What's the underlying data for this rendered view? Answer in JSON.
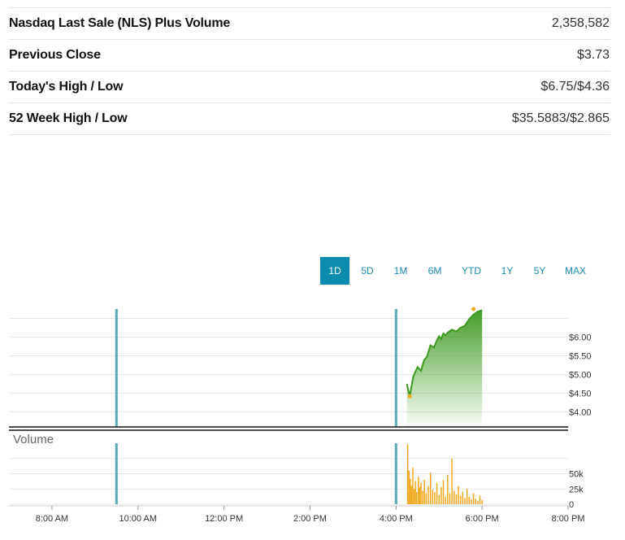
{
  "stats": [
    {
      "label": "Nasdaq Last Sale (NLS) Plus Volume",
      "value": "2,358,582"
    },
    {
      "label": "Previous Close",
      "value": "$3.73"
    },
    {
      "label": "Today's High / Low",
      "value": "$6.75/$4.36"
    },
    {
      "label": "52 Week High / Low",
      "value": "$35.5883/$2.865"
    }
  ],
  "tabs": [
    {
      "label": "1D",
      "active": true
    },
    {
      "label": "5D",
      "active": false
    },
    {
      "label": "1M",
      "active": false
    },
    {
      "label": "6M",
      "active": false
    },
    {
      "label": "YTD",
      "active": false
    },
    {
      "label": "1Y",
      "active": false
    },
    {
      "label": "5Y",
      "active": false
    },
    {
      "label": "MAX",
      "active": false
    }
  ],
  "colors": {
    "accent": "#0e8cb0",
    "price_line": "#3a9a1c",
    "volume_bar": "#f0a81a",
    "session_marker": "#5aa8b8"
  },
  "chart_data": [
    {
      "type": "line",
      "title": "",
      "x_labels": [
        "8:00 AM",
        "10:00 AM",
        "12:00 PM",
        "2:00 PM",
        "4:00 PM",
        "6:00 PM",
        "8:00 PM"
      ],
      "x_range_hours": [
        7,
        20
      ],
      "session_markers_hours": [
        9.5,
        16
      ],
      "y_ticks": [
        "$6.00",
        "$5.50",
        "$5.00",
        "$4.50",
        "$4.00"
      ],
      "y_tick_values": [
        6.0,
        5.5,
        5.0,
        4.5,
        4.0
      ],
      "ylim": [
        3.6,
        6.75
      ],
      "series": [
        {
          "name": "Price",
          "x": [
            16.25,
            16.32,
            16.4,
            16.5,
            16.58,
            16.65,
            16.72,
            16.8,
            16.88,
            16.95,
            17.0,
            17.05,
            17.1,
            17.15,
            17.2,
            17.3,
            17.4,
            17.5,
            17.6,
            17.7,
            17.8,
            17.9,
            18.0
          ],
          "y": [
            4.75,
            4.42,
            4.95,
            5.2,
            5.1,
            5.38,
            5.48,
            5.78,
            5.72,
            5.92,
            6.02,
            5.95,
            6.1,
            6.05,
            6.12,
            6.2,
            6.15,
            6.25,
            6.3,
            6.48,
            6.6,
            6.68,
            6.72
          ]
        }
      ],
      "markers": [
        {
          "label": "low",
          "x": 16.32,
          "y": 4.42
        },
        {
          "label": "high",
          "x": 17.8,
          "y": 6.75
        }
      ]
    },
    {
      "type": "bar",
      "title": "Volume",
      "y_ticks": [
        "50k",
        "25k",
        "0"
      ],
      "y_tick_values": [
        50000,
        25000,
        0
      ],
      "ylim": [
        0,
        100000
      ],
      "x_range_hours": [
        7,
        20
      ],
      "session_markers_hours": [
        9.5,
        16
      ],
      "x": [
        16.27,
        16.3,
        16.33,
        16.36,
        16.39,
        16.42,
        16.45,
        16.48,
        16.52,
        16.55,
        16.58,
        16.62,
        16.66,
        16.7,
        16.75,
        16.8,
        16.85,
        16.9,
        16.95,
        17.0,
        17.05,
        17.1,
        17.15,
        17.2,
        17.25,
        17.3,
        17.35,
        17.4,
        17.45,
        17.5,
        17.55,
        17.6,
        17.65,
        17.7,
        17.75,
        17.8,
        17.85,
        17.9,
        17.95,
        18.0
      ],
      "values": [
        98000,
        55000,
        42000,
        30000,
        60000,
        25000,
        38000,
        20000,
        45000,
        28000,
        35000,
        22000,
        40000,
        18000,
        30000,
        52000,
        24000,
        20000,
        35000,
        15000,
        28000,
        40000,
        12000,
        48000,
        18000,
        75000,
        22000,
        16000,
        30000,
        14000,
        20000,
        10000,
        25000,
        12000,
        8000,
        18000,
        9000,
        6000,
        14000,
        7000
      ]
    }
  ],
  "volume_label": "Volume"
}
